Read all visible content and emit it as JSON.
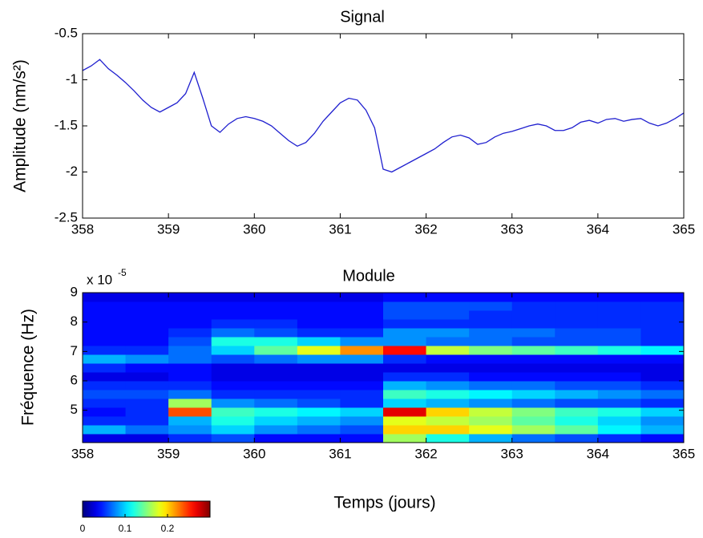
{
  "chart_data": [
    {
      "type": "line",
      "title": "Signal",
      "ylabel": "Amplitude (nm/s²)",
      "x": [
        358.0,
        358.1,
        358.2,
        358.3,
        358.4,
        358.5,
        358.6,
        358.7,
        358.8,
        358.9,
        359.0,
        359.1,
        359.2,
        359.3,
        359.4,
        359.5,
        359.6,
        359.7,
        359.8,
        359.9,
        360.0,
        360.1,
        360.2,
        360.3,
        360.4,
        360.5,
        360.6,
        360.7,
        360.8,
        360.9,
        361.0,
        361.1,
        361.2,
        361.3,
        361.4,
        361.5,
        361.6,
        361.7,
        361.8,
        361.9,
        362.0,
        362.1,
        362.2,
        362.3,
        362.4,
        362.5,
        362.6,
        362.7,
        362.8,
        362.9,
        363.0,
        363.1,
        363.2,
        363.3,
        363.4,
        363.5,
        363.6,
        363.7,
        363.8,
        363.9,
        364.0,
        364.1,
        364.2,
        364.3,
        364.4,
        364.5,
        364.6,
        364.7,
        364.8,
        364.9,
        365.0
      ],
      "series": [
        {
          "name": "Signal",
          "color": "#1f1fcf",
          "values": [
            -0.9,
            -0.85,
            -0.78,
            -0.88,
            -0.95,
            -1.03,
            -1.12,
            -1.22,
            -1.3,
            -1.35,
            -1.3,
            -1.25,
            -1.15,
            -0.92,
            -1.2,
            -1.5,
            -1.57,
            -1.48,
            -1.42,
            -1.4,
            -1.42,
            -1.45,
            -1.5,
            -1.58,
            -1.66,
            -1.72,
            -1.68,
            -1.58,
            -1.45,
            -1.35,
            -1.25,
            -1.2,
            -1.22,
            -1.33,
            -1.52,
            -1.97,
            -2.0,
            -1.95,
            -1.9,
            -1.85,
            -1.8,
            -1.75,
            -1.68,
            -1.62,
            -1.6,
            -1.63,
            -1.7,
            -1.68,
            -1.62,
            -1.58,
            -1.56,
            -1.53,
            -1.5,
            -1.48,
            -1.5,
            -1.55,
            -1.55,
            -1.52,
            -1.46,
            -1.44,
            -1.47,
            -1.43,
            -1.42,
            -1.45,
            -1.43,
            -1.42,
            -1.47,
            -1.5,
            -1.47,
            -1.42,
            -1.36
          ]
        }
      ],
      "xlim": [
        358,
        365
      ],
      "xticks": [
        358,
        359,
        360,
        361,
        362,
        363,
        364,
        365
      ],
      "ylim": [
        -2.5,
        -0.5
      ],
      "yticks": [
        -2.5,
        -2,
        -1.5,
        -1,
        -0.5
      ]
    },
    {
      "type": "heatmap",
      "title": "Module",
      "ylabel": "Fréquence (Hz)",
      "xlabel": "Temps (jours)",
      "y_multiplier": "x 10",
      "y_multiplier_exponent": "-5",
      "x_bins": [
        358,
        358.5,
        359,
        359.5,
        360,
        360.5,
        361,
        361.5,
        362,
        362.5,
        363,
        363.5,
        364,
        364.5,
        365
      ],
      "y_bins": [
        3.9,
        4.2,
        4.5,
        4.8,
        5.1,
        5.4,
        5.7,
        6.0,
        6.3,
        6.6,
        6.9,
        7.2,
        7.5,
        7.8,
        8.1,
        8.4,
        8.7,
        9.0
      ],
      "z": [
        [
          0.03,
          0.03,
          0.05,
          0.06,
          0.04,
          0.04,
          0.04,
          0.16,
          0.12,
          0.09,
          0.07,
          0.06,
          0.05,
          0.04
        ],
        [
          0.09,
          0.07,
          0.08,
          0.1,
          0.08,
          0.07,
          0.06,
          0.2,
          0.2,
          0.18,
          0.16,
          0.14,
          0.11,
          0.09
        ],
        [
          0.05,
          0.05,
          0.09,
          0.12,
          0.1,
          0.09,
          0.08,
          0.18,
          0.17,
          0.16,
          0.14,
          0.12,
          0.1,
          0.08
        ],
        [
          0.04,
          0.05,
          0.24,
          0.13,
          0.12,
          0.11,
          0.1,
          0.27,
          0.2,
          0.17,
          0.15,
          0.13,
          0.12,
          0.1
        ],
        [
          0.05,
          0.05,
          0.16,
          0.08,
          0.07,
          0.06,
          0.05,
          0.1,
          0.09,
          0.08,
          0.07,
          0.06,
          0.06,
          0.05
        ],
        [
          0.06,
          0.06,
          0.07,
          0.05,
          0.05,
          0.05,
          0.05,
          0.13,
          0.12,
          0.11,
          0.1,
          0.09,
          0.08,
          0.07
        ],
        [
          0.05,
          0.05,
          0.05,
          0.04,
          0.04,
          0.04,
          0.04,
          0.09,
          0.08,
          0.07,
          0.07,
          0.06,
          0.06,
          0.05
        ],
        [
          0.03,
          0.03,
          0.04,
          0.03,
          0.03,
          0.03,
          0.03,
          0.05,
          0.05,
          0.04,
          0.04,
          0.04,
          0.04,
          0.03
        ],
        [
          0.05,
          0.04,
          0.04,
          0.03,
          0.03,
          0.03,
          0.03,
          0.03,
          0.03,
          0.03,
          0.03,
          0.03,
          0.03,
          0.03
        ],
        [
          0.09,
          0.08,
          0.07,
          0.06,
          0.07,
          0.08,
          0.08,
          0.05,
          0.04,
          0.04,
          0.04,
          0.04,
          0.04,
          0.04
        ],
        [
          0.05,
          0.05,
          0.07,
          0.1,
          0.14,
          0.18,
          0.22,
          0.26,
          0.17,
          0.15,
          0.14,
          0.13,
          0.12,
          0.11
        ],
        [
          0.04,
          0.04,
          0.06,
          0.12,
          0.12,
          0.1,
          0.08,
          0.08,
          0.07,
          0.07,
          0.06,
          0.06,
          0.06,
          0.05
        ],
        [
          0.04,
          0.04,
          0.05,
          0.07,
          0.06,
          0.05,
          0.05,
          0.08,
          0.08,
          0.07,
          0.07,
          0.06,
          0.06,
          0.05
        ],
        [
          0.04,
          0.04,
          0.04,
          0.05,
          0.05,
          0.04,
          0.04,
          0.05,
          0.05,
          0.05,
          0.05,
          0.05,
          0.05,
          0.05
        ],
        [
          0.04,
          0.04,
          0.04,
          0.04,
          0.04,
          0.04,
          0.04,
          0.06,
          0.06,
          0.05,
          0.05,
          0.05,
          0.05,
          0.05
        ],
        [
          0.04,
          0.04,
          0.04,
          0.04,
          0.04,
          0.04,
          0.04,
          0.06,
          0.06,
          0.06,
          0.05,
          0.05,
          0.05,
          0.05
        ],
        [
          0.03,
          0.03,
          0.03,
          0.03,
          0.03,
          0.03,
          0.03,
          0.04,
          0.04,
          0.04,
          0.04,
          0.04,
          0.04,
          0.04
        ]
      ],
      "colormap": "jet",
      "clim": [
        0,
        0.3
      ],
      "colorbar_ticks": [
        0,
        0.1,
        0.2
      ],
      "xlim": [
        358,
        365
      ],
      "xticks": [
        358,
        359,
        360,
        361,
        362,
        363,
        364,
        365
      ],
      "ylim": [
        3.9,
        9
      ],
      "yticks": [
        5,
        6,
        7,
        8,
        9
      ]
    }
  ]
}
